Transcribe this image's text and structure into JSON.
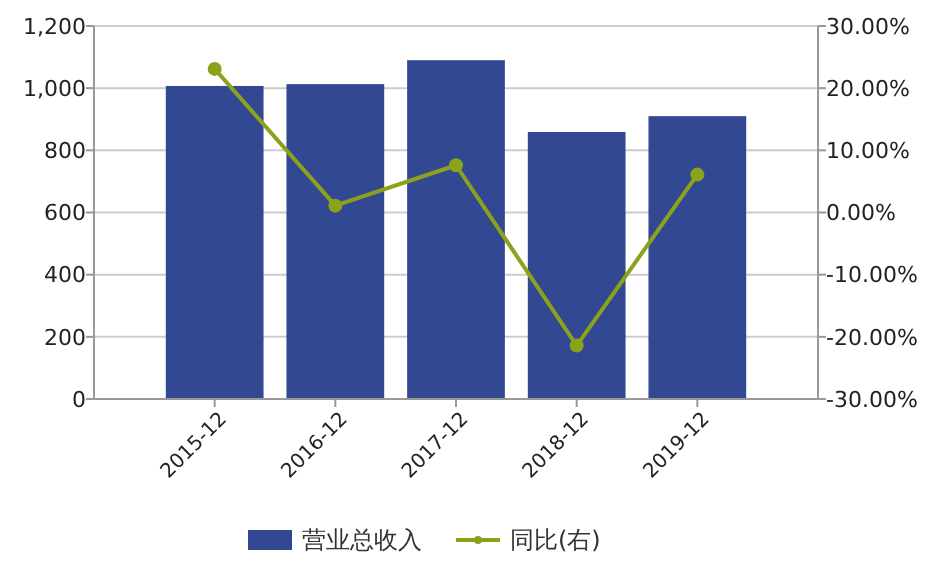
{
  "chart_data": {
    "type": "bar",
    "categories": [
      "2015-12",
      "2016-12",
      "2017-12",
      "2018-12",
      "2019-12"
    ],
    "series": [
      {
        "name": "营业总收入",
        "color": "#334893",
        "values": [
          1007,
          1013,
          1090,
          859,
          910
        ]
      },
      {
        "name": "同比(右)",
        "type": "line",
        "axis": "y2",
        "color": "#8aa31a",
        "marker": "circle",
        "values": [
          23.1,
          1.1,
          7.6,
          -21.4,
          6.1
        ]
      }
    ],
    "ylim": [
      0,
      1200
    ],
    "yticks": [
      {
        "value": 0,
        "label": "0"
      },
      {
        "value": 200,
        "label": "200"
      },
      {
        "value": 400,
        "label": "400"
      },
      {
        "value": 600,
        "label": "600"
      },
      {
        "value": 800,
        "label": "800"
      },
      {
        "value": 1000,
        "label": "1,000"
      },
      {
        "value": 1200,
        "label": "1,200"
      }
    ],
    "y2lim": [
      -30,
      30
    ],
    "y2ticks": [
      {
        "value": -30,
        "label": "-30.00%"
      },
      {
        "value": -20,
        "label": "-20.00%"
      },
      {
        "value": -10,
        "label": "-10.00%"
      },
      {
        "value": 0,
        "label": "0.00%"
      },
      {
        "value": 10,
        "label": "10.00%"
      },
      {
        "value": 20,
        "label": "20.00%"
      },
      {
        "value": 30,
        "label": "30.00%"
      }
    ],
    "grid": "y",
    "legend": "bottom"
  }
}
